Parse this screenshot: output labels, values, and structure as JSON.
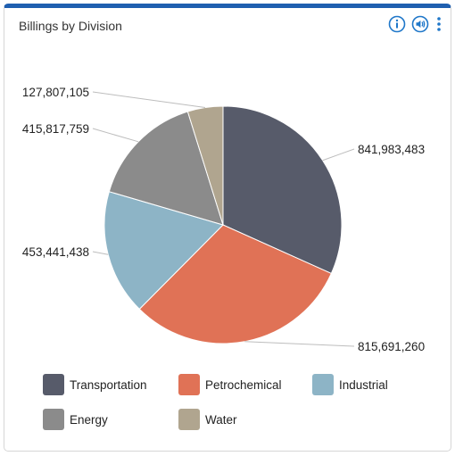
{
  "widget": {
    "title": "Billings by Division",
    "accent_color": "#1f5fb0",
    "tools": [
      {
        "name": "info-icon"
      },
      {
        "name": "speaker-icon"
      },
      {
        "name": "more-options-icon"
      }
    ]
  },
  "chart_data": {
    "type": "pie",
    "title": "Billings by Division",
    "legend_position": "bottom",
    "slices": [
      {
        "label": "Transportation",
        "value": 841983483,
        "value_label": "841,983,483",
        "color": "#575b6a"
      },
      {
        "label": "Petrochemical",
        "value": 815691260,
        "value_label": "815,691,260",
        "color": "#e07256"
      },
      {
        "label": "Industrial",
        "value": 453441438,
        "value_label": "453,441,438",
        "color": "#8db4c6"
      },
      {
        "label": "Energy",
        "value": 415817759,
        "value_label": "415,817,759",
        "color": "#8b8b8b"
      },
      {
        "label": "Water",
        "value": 127807105,
        "value_label": "127,807,105",
        "color": "#b0a58f"
      }
    ]
  }
}
